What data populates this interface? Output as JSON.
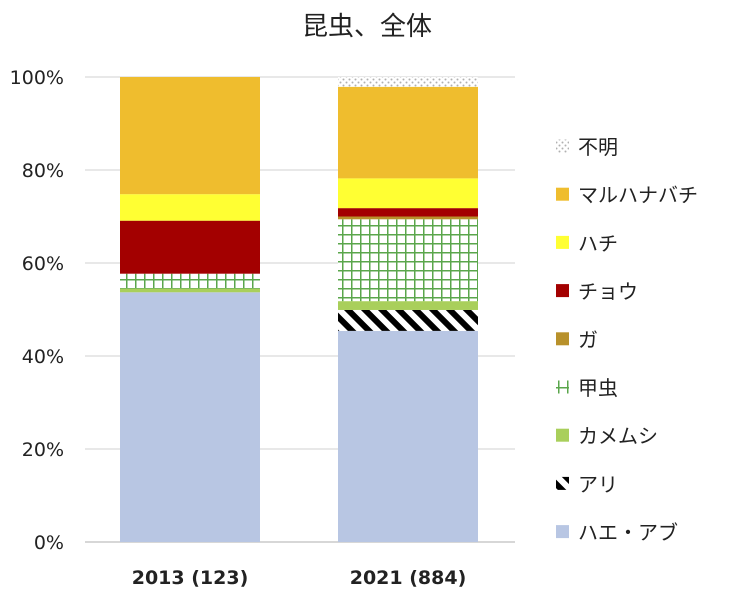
{
  "chart_data": {
    "type": "bar",
    "stacked": true,
    "title": "昆虫、全体",
    "xlabel": "",
    "ylabel": "",
    "ylim": [
      0,
      100
    ],
    "yticks": [
      "0%",
      "20%",
      "40%",
      "60%",
      "80%",
      "100%"
    ],
    "ytick_values": [
      0,
      20,
      40,
      60,
      80,
      100
    ],
    "grid": true,
    "legend_position": "right",
    "categories": [
      "2013 (123)",
      "2021 (884)"
    ],
    "series": [
      {
        "name": "ハエ・アブ",
        "color": "#b8c6e3",
        "pattern": "solid",
        "values": [
          53.7,
          45.4
        ]
      },
      {
        "name": "アリ",
        "color": "#000000",
        "pattern": "diagonal-stripes",
        "values": [
          0,
          4.5
        ]
      },
      {
        "name": "カメムシ",
        "color": "#a9cf5b",
        "pattern": "solid",
        "values": [
          0.8,
          1.9
        ]
      },
      {
        "name": "甲虫",
        "color": "#5aa64b",
        "pattern": "grid",
        "values": [
          3.2,
          17.6
        ]
      },
      {
        "name": "ガ",
        "color": "#b8912b",
        "pattern": "solid",
        "values": [
          0,
          0.6
        ]
      },
      {
        "name": "チョウ",
        "color": "#a30000",
        "pattern": "solid",
        "values": [
          11.4,
          1.8
        ]
      },
      {
        "name": "ハチ",
        "color": "#ffff33",
        "pattern": "solid",
        "values": [
          5.7,
          6.4
        ]
      },
      {
        "name": "マルハナバチ",
        "color": "#efbd2e",
        "pattern": "solid",
        "values": [
          25.2,
          19.7
        ]
      },
      {
        "name": "不明",
        "color": "#c8c8c8",
        "pattern": "dots",
        "values": [
          0,
          2.1
        ]
      }
    ]
  }
}
